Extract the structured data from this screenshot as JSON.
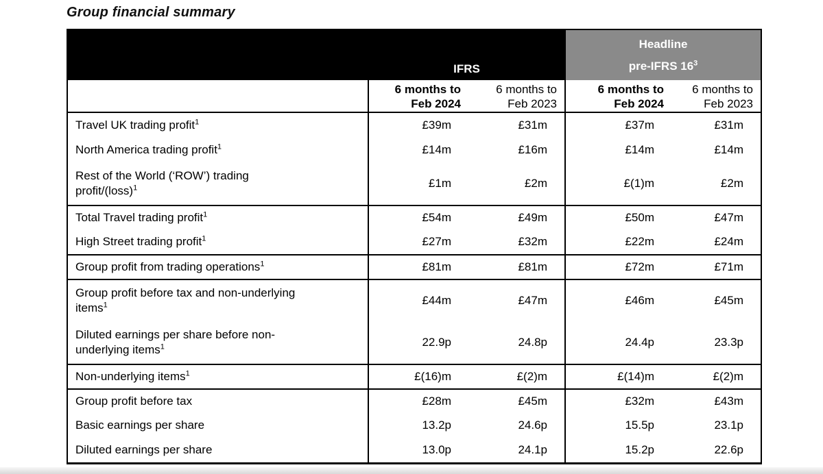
{
  "page": {
    "title": "Group financial summary"
  },
  "colors": {
    "band_black": "#000000",
    "band_gray": "#8a8a8a",
    "band_text": "#ffffff",
    "border": "#000000"
  },
  "table": {
    "band": {
      "ifrs_label": "IFRS",
      "headline_line1": "Headline",
      "headline_line2": "pre-IFRS 16",
      "headline_sup": "3"
    },
    "col_headers": [
      {
        "line1": "6 months to",
        "line2": "Feb 2024",
        "bold": true
      },
      {
        "line1": "6 months to",
        "line2": "Feb 2023",
        "bold": false
      },
      {
        "line1": "6 months to",
        "line2": "Feb 2024",
        "bold": true
      },
      {
        "line1": "6 months to",
        "line2": "Feb 2023",
        "bold": false
      }
    ],
    "rows": [
      {
        "label_lines": [
          "Travel UK trading profit"
        ],
        "sup": "1",
        "values": [
          "£39m",
          "£31m",
          "£37m",
          "£31m"
        ],
        "section": false
      },
      {
        "label_lines": [
          "North America trading profit"
        ],
        "sup": "1",
        "values": [
          "£14m",
          "£16m",
          "£14m",
          "£14m"
        ],
        "section": false
      },
      {
        "label_lines": [
          "Rest of the World (‘ROW’) trading",
          "profit/(loss)"
        ],
        "sup": "1",
        "values": [
          "£1m",
          "£2m",
          "£(1)m",
          "£2m"
        ],
        "section": false
      },
      {
        "label_lines": [
          "Total Travel trading profit"
        ],
        "sup": "1",
        "values": [
          "£54m",
          "£49m",
          "£50m",
          "£47m"
        ],
        "section": true
      },
      {
        "label_lines": [
          "High Street trading profit"
        ],
        "sup": "1",
        "values": [
          "£27m",
          "£32m",
          "£22m",
          "£24m"
        ],
        "section": false
      },
      {
        "label_lines": [
          "Group profit from trading operations"
        ],
        "sup": "1",
        "values": [
          "£81m",
          "£81m",
          "£72m",
          "£71m"
        ],
        "section": true
      },
      {
        "label_lines": [
          "Group profit before tax and non-underlying",
          "items"
        ],
        "sup": "1",
        "values": [
          "£44m",
          "£47m",
          "£46m",
          "£45m"
        ],
        "section": true
      },
      {
        "label_lines": [
          "Diluted earnings per share before non-",
          "underlying items"
        ],
        "sup": "1",
        "values": [
          "22.9p",
          "24.8p",
          "24.4p",
          "23.3p"
        ],
        "section": false
      },
      {
        "label_lines": [
          "Non-underlying items"
        ],
        "sup": "1",
        "values": [
          "£(16)m",
          "£(2)m",
          "£(14)m",
          "£(2)m"
        ],
        "section": true
      },
      {
        "label_lines": [
          "Group profit before tax"
        ],
        "sup": null,
        "values": [
          "£28m",
          "£45m",
          "£32m",
          "£43m"
        ],
        "section": true
      },
      {
        "label_lines": [
          "Basic earnings per share"
        ],
        "sup": null,
        "values": [
          "13.2p",
          "24.6p",
          "15.5p",
          "23.1p"
        ],
        "section": false
      },
      {
        "label_lines": [
          "Diluted earnings per share"
        ],
        "sup": null,
        "values": [
          "13.0p",
          "24.1p",
          "15.2p",
          "22.6p"
        ],
        "section": false
      }
    ]
  }
}
